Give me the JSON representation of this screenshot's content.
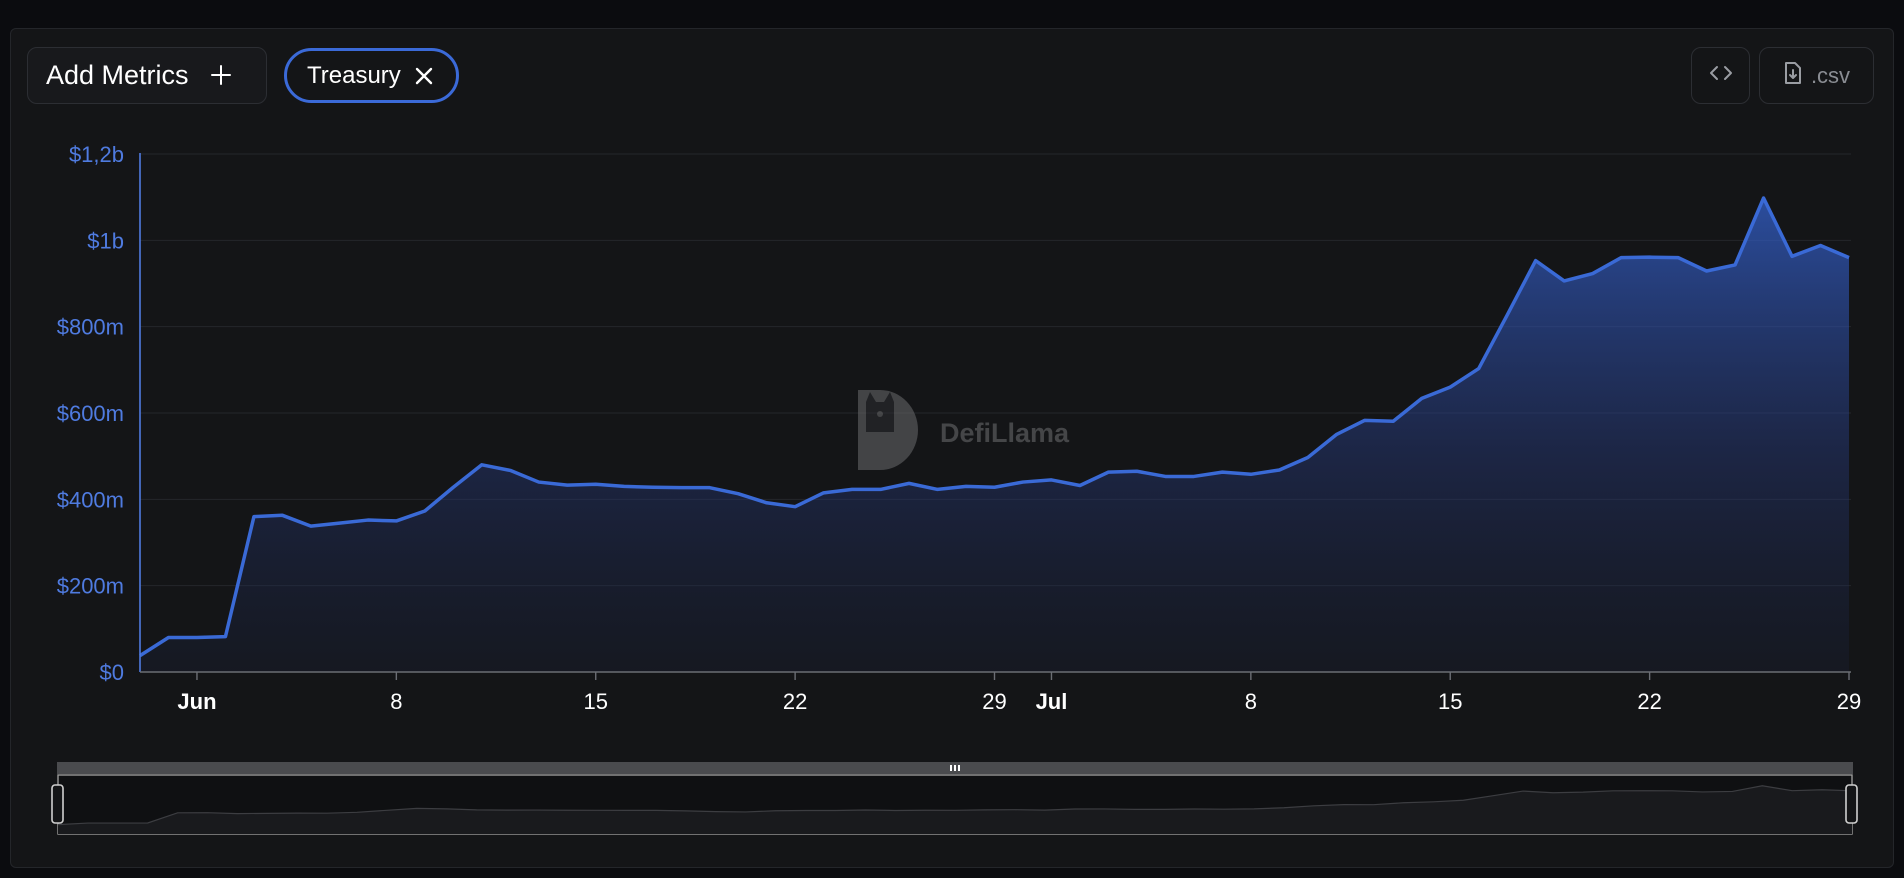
{
  "toolbar": {
    "add_metrics_label": "Add Metrics",
    "plus_icon": "plus-icon",
    "chip_label": "Treasury",
    "chip_close_icon": "close-icon",
    "embed_icon": "code-icon",
    "csv_icon": "file-download-icon",
    "csv_label": ".csv"
  },
  "watermark": {
    "text": "DefiLlama"
  },
  "colors": {
    "accent": "#3b6ad8",
    "line": "#3a6ad6",
    "axis_label": "#4f7be0",
    "background": "#141517"
  },
  "chart_data": {
    "type": "area",
    "y_tick_labels": [
      "$0",
      "$200m",
      "$400m",
      "$600m",
      "$800m",
      "$1b",
      "$1,2b"
    ],
    "y_ticks": [
      0,
      200,
      400,
      600,
      800,
      1000,
      1200
    ],
    "ylim": [
      0,
      1200
    ],
    "y_unit": "millions USD",
    "x_tick_labels": [
      {
        "label": "Jun",
        "day": 1,
        "bold": true
      },
      {
        "label": "8",
        "day": 8,
        "bold": false
      },
      {
        "label": "15",
        "day": 15,
        "bold": false
      },
      {
        "label": "22",
        "day": 22,
        "bold": false
      },
      {
        "label": "29",
        "day": 29,
        "bold": false
      },
      {
        "label": "Jul",
        "day": 31,
        "bold": true
      },
      {
        "label": "8",
        "day": 38,
        "bold": false
      },
      {
        "label": "15",
        "day": 45,
        "bold": false
      },
      {
        "label": "22",
        "day": 52,
        "bold": false
      },
      {
        "label": "29",
        "day": 59,
        "bold": false
      }
    ],
    "x": [
      -1,
      0,
      1,
      2,
      3,
      4,
      5,
      6,
      7,
      8,
      9,
      10,
      11,
      12,
      13,
      14,
      15,
      16,
      17,
      18,
      19,
      20,
      21,
      22,
      23,
      24,
      25,
      26,
      27,
      28,
      29,
      30,
      31,
      32,
      33,
      34,
      35,
      36,
      37,
      38,
      39,
      40,
      41,
      42,
      43,
      44,
      45,
      46,
      47,
      48,
      49,
      50,
      51,
      52,
      53,
      54,
      55,
      56,
      57,
      58,
      59
    ],
    "series": [
      {
        "values": [
          38,
          80,
          80,
          82,
          360,
          363,
          338,
          345,
          352,
          350,
          373,
          428,
          480,
          467,
          440,
          433,
          435,
          430,
          428,
          427,
          427,
          413,
          392,
          383,
          415,
          423,
          423,
          437,
          423,
          430,
          428,
          440,
          445,
          432,
          463,
          465,
          453,
          453,
          463,
          458,
          468,
          497,
          550,
          583,
          581,
          634,
          660,
          703,
          827,
          953,
          906,
          923,
          960,
          961,
          960,
          929,
          943,
          1098,
          963,
          988,
          960
        ]
      }
    ],
    "grid": true,
    "legend": "none"
  }
}
